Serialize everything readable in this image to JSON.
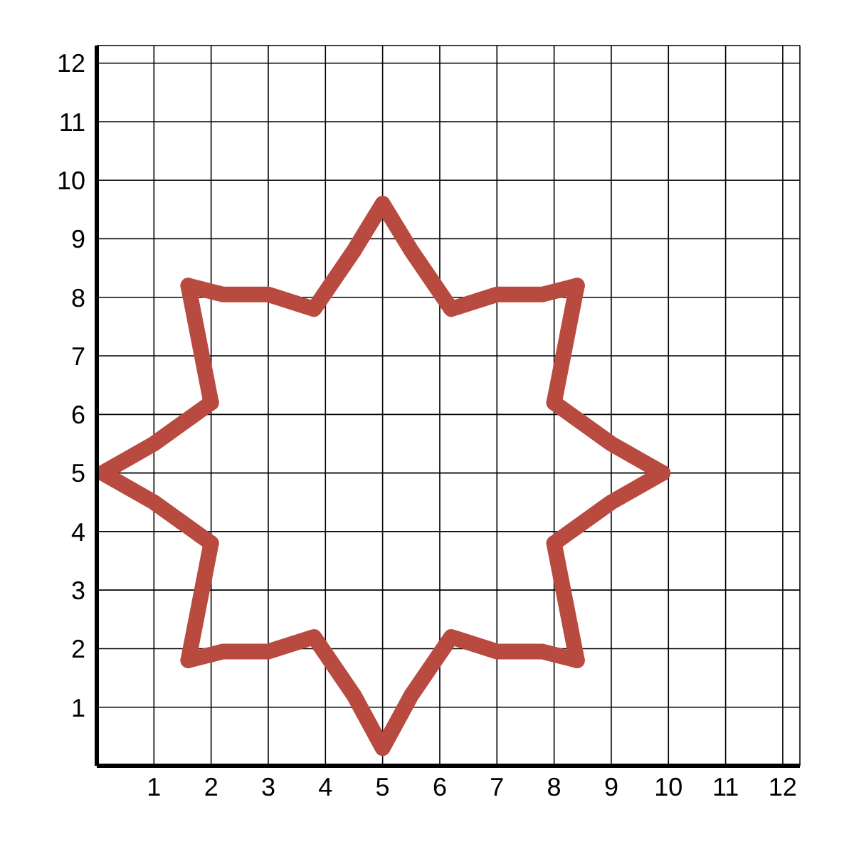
{
  "chart_data": {
    "type": "line",
    "xlim": [
      0,
      12.3
    ],
    "ylim": [
      0,
      12.3
    ],
    "xticks": [
      1,
      2,
      3,
      4,
      5,
      6,
      7,
      8,
      9,
      10,
      11,
      12
    ],
    "yticks": [
      1,
      2,
      3,
      4,
      5,
      6,
      7,
      8,
      9,
      10,
      11,
      12
    ],
    "grid": true,
    "marker": "none",
    "line_style": "solid",
    "series": [
      {
        "color": "#b94a40",
        "x": [
          0.1,
          1,
          2
        ],
        "values": [
          5,
          5.5,
          6.2
        ]
      },
      {
        "color": "#b94a40",
        "x": [
          1.6,
          1.8,
          2
        ],
        "values": [
          8.2,
          7.2,
          6.2
        ]
      },
      {
        "color": "#b94a40",
        "x": [
          1.6,
          2.2,
          3,
          3.8,
          4.5,
          5,
          5.5,
          6.2,
          7,
          7.8,
          8.4
        ],
        "values": [
          8.2,
          8.05,
          8.05,
          7.8,
          8.8,
          9.6,
          8.8,
          7.8,
          8.05,
          8.05,
          8.2
        ]
      },
      {
        "color": "#b94a40",
        "x": [
          8,
          8.2,
          8.4
        ],
        "values": [
          6.2,
          7.2,
          8.2
        ]
      },
      {
        "color": "#b94a40",
        "x": [
          8,
          9,
          9.9
        ],
        "values": [
          6.2,
          5.5,
          5
        ]
      },
      {
        "color": "#b94a40",
        "x": [
          8,
          9,
          9.9
        ],
        "values": [
          3.8,
          4.5,
          5
        ]
      },
      {
        "color": "#b94a40",
        "x": [
          8,
          8.2,
          8.4
        ],
        "values": [
          3.8,
          2.8,
          1.8
        ]
      },
      {
        "color": "#b94a40",
        "x": [
          1.6,
          2.2,
          3,
          3.8,
          4.5,
          5,
          5.5,
          6.2,
          7,
          7.8,
          8.4
        ],
        "values": [
          1.8,
          1.95,
          1.95,
          2.2,
          1.2,
          0.3,
          1.2,
          2.2,
          1.95,
          1.95,
          1.8
        ]
      },
      {
        "color": "#b94a40",
        "x": [
          1.6,
          1.8,
          2
        ],
        "values": [
          1.8,
          2.8,
          3.8
        ]
      },
      {
        "color": "#b94a40",
        "x": [
          0.1,
          1,
          2
        ],
        "values": [
          5,
          4.5,
          3.8
        ]
      }
    ]
  }
}
